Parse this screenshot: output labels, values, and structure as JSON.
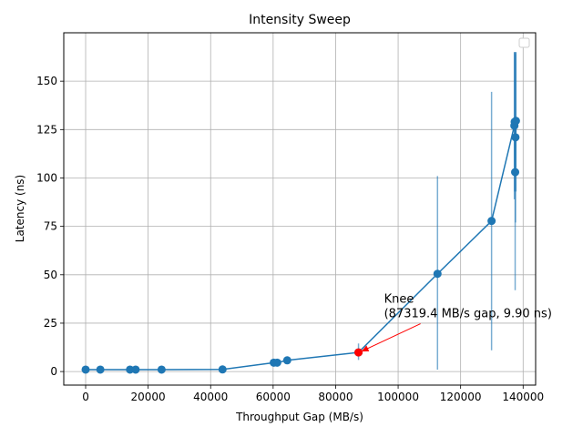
{
  "chart_data": {
    "type": "line",
    "title": "Intensity Sweep",
    "xlabel": "Throughput Gap (MB/s)",
    "ylabel": "Latency (ns)",
    "xlim": [
      -7000,
      144000
    ],
    "ylim": [
      -7,
      175
    ],
    "xticks": [
      0,
      20000,
      40000,
      60000,
      80000,
      100000,
      120000,
      140000
    ],
    "yticks": [
      0,
      25,
      50,
      75,
      100,
      125,
      150
    ],
    "grid": true,
    "legend": "top-right, empty",
    "colors": {
      "series": "#1f77b4",
      "knee": "#ff0000",
      "grid": "#b0b0b0"
    },
    "series": [
      {
        "points": [
          {
            "x": 0,
            "y": 1.0,
            "lo": 1.0,
            "hi": 1.0
          },
          {
            "x": 4700,
            "y": 1.0,
            "lo": 1.0,
            "hi": 1.0
          },
          {
            "x": 14200,
            "y": 1.0,
            "lo": 1.0,
            "hi": 1.0
          },
          {
            "x": 16000,
            "y": 1.0,
            "lo": 1.0,
            "hi": 1.0
          },
          {
            "x": 24300,
            "y": 1.0,
            "lo": 1.0,
            "hi": 1.0
          },
          {
            "x": 43800,
            "y": 1.1,
            "lo": 1.1,
            "hi": 1.1
          },
          {
            "x": 60200,
            "y": 4.6,
            "lo": 3.5,
            "hi": 6.0
          },
          {
            "x": 61300,
            "y": 4.6,
            "lo": 3.5,
            "hi": 6.0
          },
          {
            "x": 64500,
            "y": 5.8,
            "lo": 4.5,
            "hi": 7.0
          },
          {
            "x": 87319.4,
            "y": 9.9,
            "lo": 6.0,
            "hi": 14.5
          },
          {
            "x": 112600,
            "y": 50.5,
            "lo": 1.0,
            "hi": 101.0
          },
          {
            "x": 129900,
            "y": 77.8,
            "lo": 11.0,
            "hi": 144.5
          },
          {
            "x": 137200,
            "y": 127.0,
            "lo": 89.0,
            "hi": 165.0
          },
          {
            "x": 137300,
            "y": 129.0,
            "lo": 93.0,
            "hi": 165.0
          },
          {
            "x": 137450,
            "y": 103.0,
            "lo": 42.0,
            "hi": 164.0
          },
          {
            "x": 137550,
            "y": 121.0,
            "lo": 77.0,
            "hi": 165.0
          },
          {
            "x": 137700,
            "y": 129.5,
            "lo": 93.0,
            "hi": 165.0
          }
        ]
      }
    ],
    "knee": {
      "x": 87319.4,
      "y": 9.9
    },
    "annotation": {
      "line1": "Knee",
      "line2": "(87319.4 MB/s gap, 9.90 ns)",
      "text_x": 95500,
      "text_y": 28
    }
  }
}
